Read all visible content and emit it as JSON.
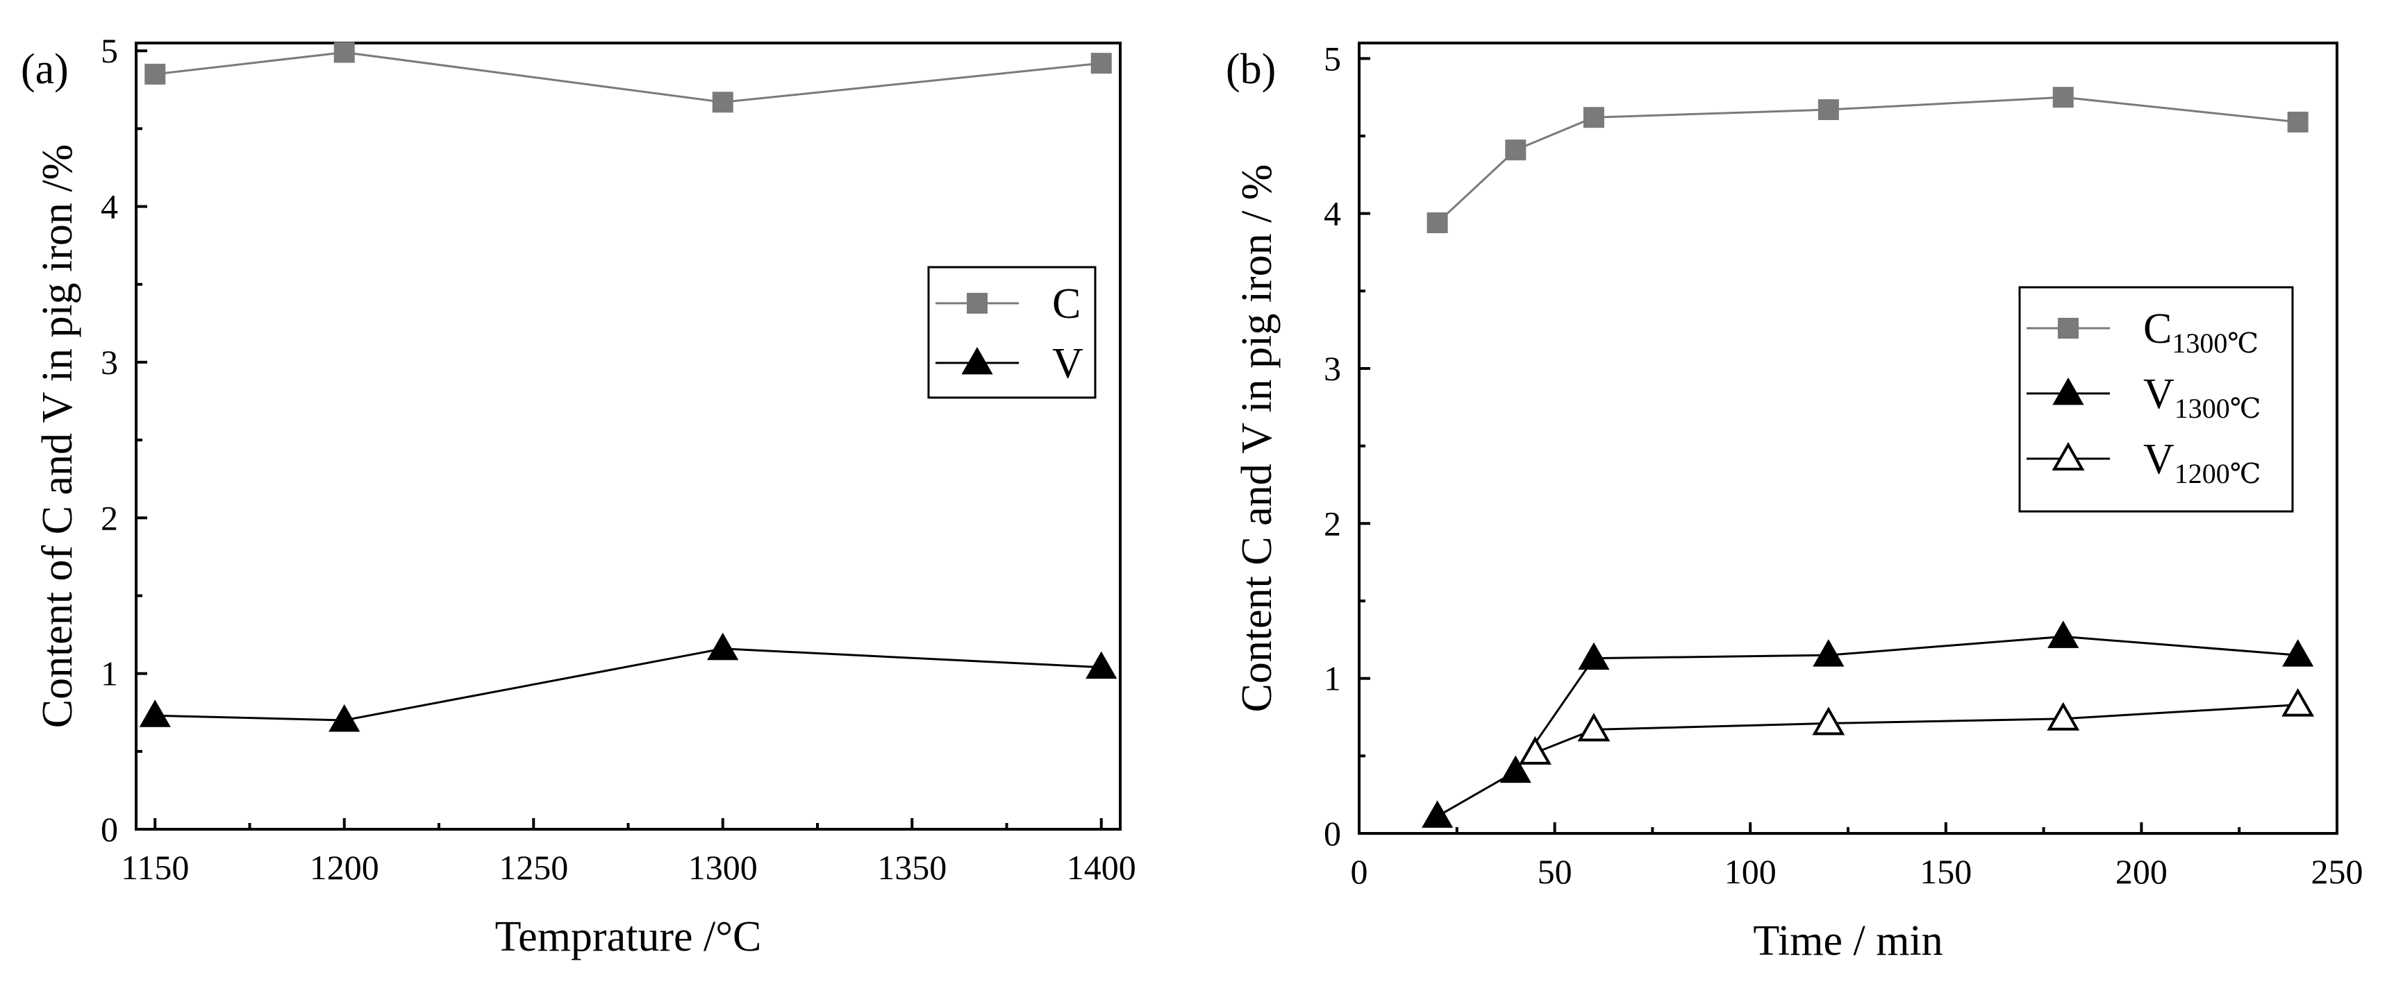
{
  "chart_data": [
    {
      "type": "line",
      "panel_label": "(a)",
      "xlabel": "Temprature /°C",
      "ylabel": "Content of C and V in pig iron /%",
      "xlim": [
        1145,
        1405
      ],
      "ylim": [
        0,
        5.05
      ],
      "xticks": [
        1150,
        1200,
        1250,
        1300,
        1350,
        1400
      ],
      "yticks": [
        0,
        1,
        2,
        3,
        4,
        5
      ],
      "x": [
        1150,
        1200,
        1300,
        1400
      ],
      "series": [
        {
          "name": "C",
          "sub": "",
          "marker": "square-filled",
          "color": "#7a7a7a",
          "values": [
            4.85,
            4.99,
            4.67,
            4.92
          ]
        },
        {
          "name": "V",
          "sub": "",
          "marker": "triangle-filled",
          "color": "#000000",
          "values": [
            0.73,
            0.7,
            1.16,
            1.04
          ]
        }
      ],
      "legend": "right"
    },
    {
      "type": "line",
      "panel_label": "(b)",
      "xlabel": "Time / min",
      "ylabel": "Content C and V  in pig iron / %",
      "xlim": [
        0,
        250
      ],
      "ylim": [
        0,
        5.1
      ],
      "xticks": [
        0,
        50,
        100,
        150,
        200,
        250
      ],
      "yticks": [
        0,
        1,
        2,
        3,
        4,
        5
      ],
      "series": [
        {
          "name": "C",
          "sub": "1300℃",
          "marker": "square-filled",
          "color": "#7a7a7a",
          "x": [
            20,
            40,
            60,
            120,
            180,
            240
          ],
          "values": [
            3.94,
            4.41,
            4.62,
            4.67,
            4.75,
            4.59
          ]
        },
        {
          "name": "V",
          "sub": "1300℃",
          "marker": "triangle-filled",
          "color": "#000000",
          "x": [
            20,
            40,
            60,
            120,
            180,
            240
          ],
          "values": [
            0.11,
            0.4,
            1.13,
            1.15,
            1.27,
            1.15
          ]
        },
        {
          "name": "V",
          "sub": "1200℃",
          "marker": "triangle-open",
          "color": "#000000",
          "x": [
            45,
            60,
            120,
            180,
            240
          ],
          "values": [
            0.52,
            0.67,
            0.71,
            0.74,
            0.83
          ]
        }
      ],
      "legend": "right"
    }
  ]
}
